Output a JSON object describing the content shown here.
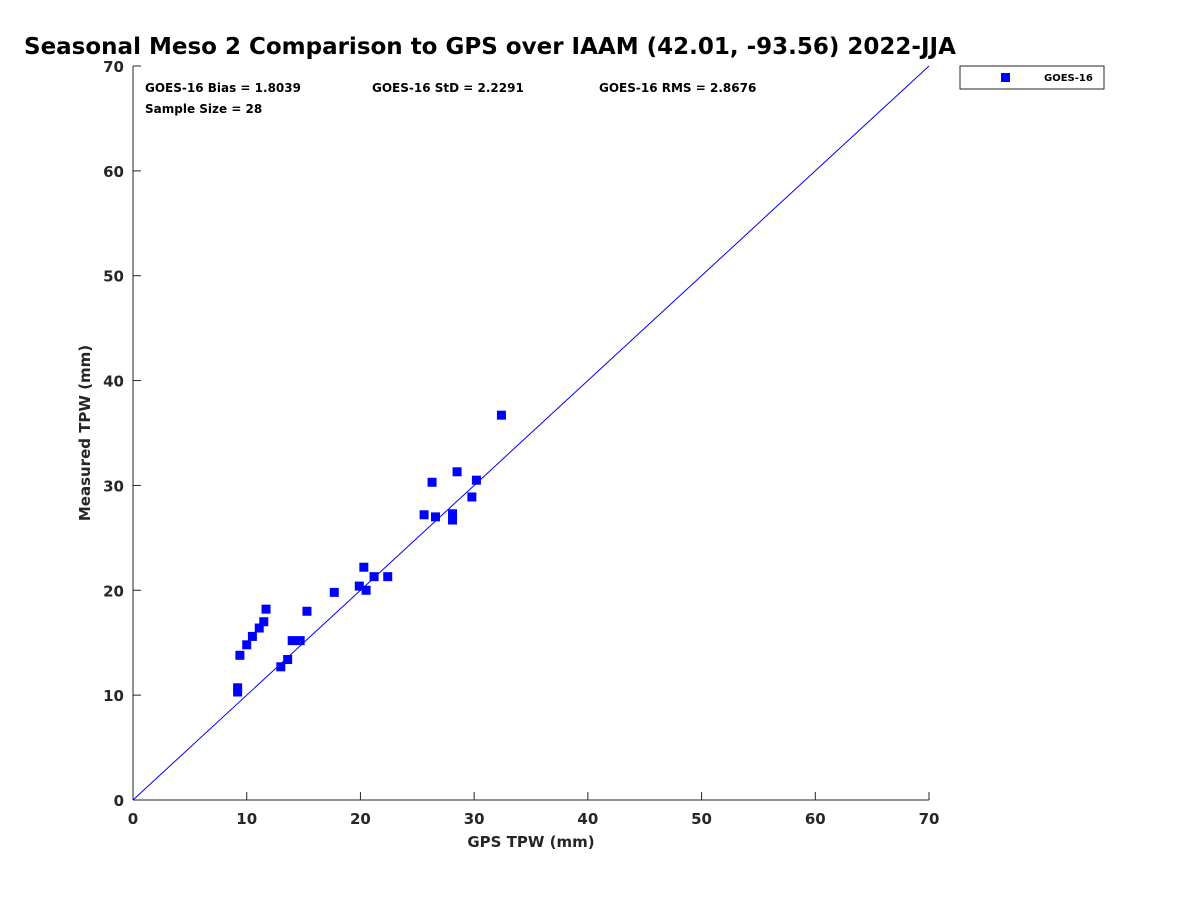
{
  "chart_data": {
    "type": "scatter",
    "title": "Seasonal Meso 2 Comparison to GPS over IAAM (42.01, -93.56) 2022-JJA",
    "xlabel": "GPS TPW (mm)",
    "ylabel": "Measured TPW (mm)",
    "xlim": [
      0,
      70
    ],
    "ylim": [
      0,
      70
    ],
    "xticks": [
      "0",
      "10",
      "20",
      "30",
      "40",
      "50",
      "60",
      "70"
    ],
    "yticks": [
      "0",
      "10",
      "20",
      "30",
      "40",
      "50",
      "60",
      "70"
    ],
    "grid": false,
    "legend_position": "outside-top-right",
    "reference_line": {
      "from": [
        0,
        0
      ],
      "to": [
        70,
        70
      ],
      "color": "#0000ff"
    },
    "stats": {
      "bias": "GOES-16 Bias = 1.8039",
      "std": "GOES-16 StD = 2.2291",
      "rms": "GOES-16 RMS = 2.8676",
      "sample_size": "Sample Size = 28"
    },
    "series": [
      {
        "name": "GOES-16",
        "color": "#0000ff",
        "marker": "square",
        "points": [
          [
            9.2,
            10.7
          ],
          [
            9.2,
            10.3
          ],
          [
            9.4,
            13.8
          ],
          [
            10.0,
            14.8
          ],
          [
            10.5,
            15.6
          ],
          [
            11.1,
            16.4
          ],
          [
            11.5,
            17.0
          ],
          [
            11.7,
            18.2
          ],
          [
            13.0,
            12.7
          ],
          [
            13.6,
            13.4
          ],
          [
            14.0,
            15.2
          ],
          [
            14.7,
            15.2
          ],
          [
            15.3,
            18.0
          ],
          [
            17.7,
            19.8
          ],
          [
            19.9,
            20.4
          ],
          [
            20.3,
            22.2
          ],
          [
            20.5,
            20.0
          ],
          [
            21.2,
            21.3
          ],
          [
            22.4,
            21.3
          ],
          [
            25.6,
            27.2
          ],
          [
            26.3,
            30.3
          ],
          [
            26.6,
            27.0
          ],
          [
            28.1,
            27.3
          ],
          [
            28.1,
            26.7
          ],
          [
            28.5,
            31.3
          ],
          [
            29.8,
            28.9
          ],
          [
            30.2,
            30.5
          ],
          [
            32.4,
            36.7
          ]
        ]
      }
    ]
  }
}
